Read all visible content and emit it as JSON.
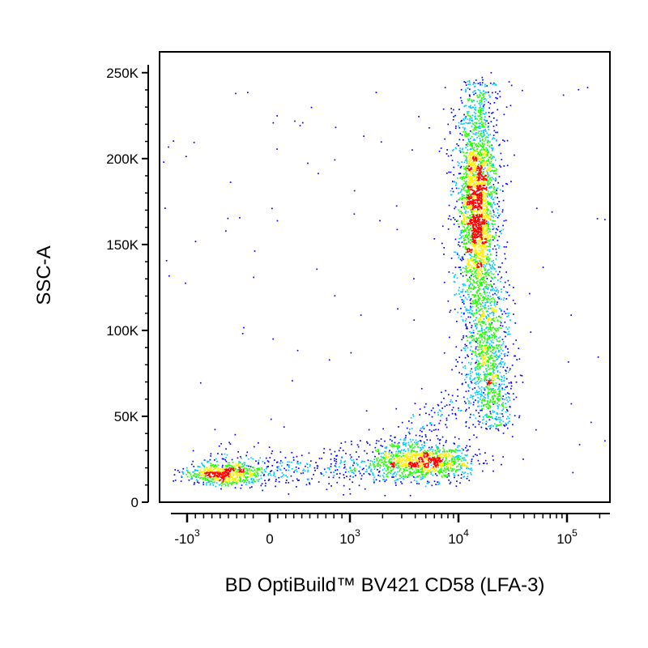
{
  "chart_data": {
    "type": "scatter",
    "style": "flow-cytometry density dot plot (blue low density to red high density)",
    "xlabel": "BD OptiBuild™ BV421 CD58 (LFA-3)",
    "ylabel": "SSC-A",
    "x_scale": "biexponential",
    "y_scale": "linear",
    "ylim": [
      0,
      262144
    ],
    "y_ticks": [
      {
        "value": 0,
        "label": "0"
      },
      {
        "value": 50000,
        "label": "50K"
      },
      {
        "value": 100000,
        "label": "100K"
      },
      {
        "value": 150000,
        "label": "150K"
      },
      {
        "value": 200000,
        "label": "200K"
      },
      {
        "value": 250000,
        "label": "250K"
      }
    ],
    "x_ticks": [
      {
        "value": -1000,
        "base": "-10",
        "exp": "3"
      },
      {
        "value": 0,
        "base": "0",
        "exp": ""
      },
      {
        "value": 1000,
        "base": "10",
        "exp": "3"
      },
      {
        "value": 10000,
        "base": "10",
        "exp": "4"
      },
      {
        "value": 100000,
        "base": "10",
        "exp": "5"
      }
    ],
    "density_colors": [
      "#0000ff",
      "#00c8ff",
      "#22ff00",
      "#ffee00",
      "#ff0000"
    ],
    "populations": [
      {
        "description": "CD58-negative/dim low-SSC cluster",
        "x_center": -500,
        "y_center": 16000
      },
      {
        "description": "CD58-positive low-SSC cluster",
        "x_center": 5000,
        "y_center": 22000
      },
      {
        "description": "CD58-positive high-SSC cluster",
        "x_center": 13000,
        "y_center": 165000
      }
    ]
  }
}
